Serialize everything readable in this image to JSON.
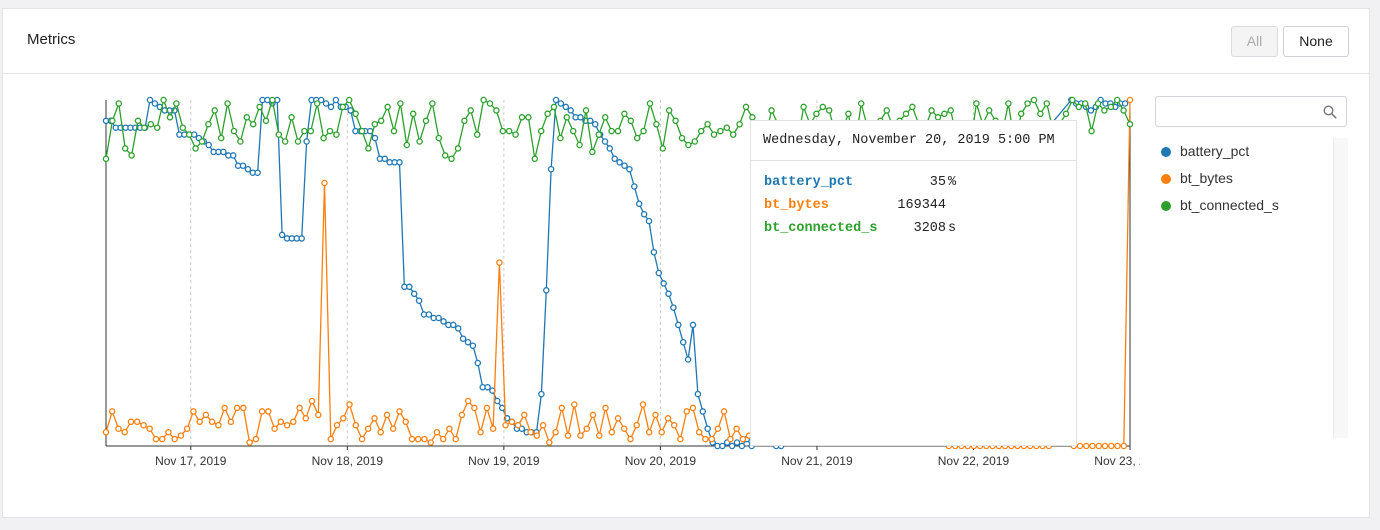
{
  "header": {
    "title": "Metrics",
    "all_label": "All",
    "none_label": "None"
  },
  "search": {
    "placeholder": "",
    "value": ""
  },
  "colors": {
    "battery_pct": "#1f77b4",
    "bt_bytes": "#ff7f0e",
    "bt_connected_s": "#2ca02c",
    "grid": "#cccccc",
    "axis": "#333333"
  },
  "legend": [
    {
      "label": "battery_pct",
      "color": "#1f77b4"
    },
    {
      "label": "bt_bytes",
      "color": "#ff7f0e"
    },
    {
      "label": "bt_connected_s",
      "color": "#2ca02c"
    }
  ],
  "tooltip": {
    "title": "Wednesday, November 20, 2019 5:00 PM",
    "rows": [
      {
        "name": "battery_pct",
        "value": "35",
        "unit": "%",
        "color": "#1f77b4"
      },
      {
        "name": "bt_bytes",
        "value": "169344",
        "unit": "",
        "color": "#ff7f0e"
      },
      {
        "name": "bt_connected_s",
        "value": "3208",
        "unit": "s",
        "color": "#2ca02c"
      }
    ]
  },
  "chart_data": {
    "type": "line",
    "x_tick_labels": [
      "Nov 17, 2019",
      "Nov 18, 2019",
      "Nov 19, 2019",
      "Nov 20, 2019",
      "Nov 21, 2019",
      "Nov 22, 2019",
      "Nov 23, 2019"
    ],
    "x_start": "2019-11-16 11:00",
    "x_end": "2019-11-23 00:00",
    "y_normalized": true,
    "ylim": [
      0,
      1
    ],
    "grid": "vertical dashed at each day",
    "series": [
      {
        "name": "battery_pct",
        "x": [
          "2019-11-16 11:00",
          "2019-11-16 11:45",
          "2019-11-16 12:30",
          "2019-11-16 13:15",
          "2019-11-16 14:00",
          "2019-11-16 14:45",
          "2019-11-16 15:30",
          "2019-11-16 16:15",
          "2019-11-16 17:00",
          "2019-11-16 17:45",
          "2019-11-16 18:30",
          "2019-11-16 19:15",
          "2019-11-16 20:00",
          "2019-11-16 20:45",
          "2019-11-16 21:30",
          "2019-11-16 22:15",
          "2019-11-16 23:00",
          "2019-11-16 23:45",
          "2019-11-17 00:30",
          "2019-11-17 01:15",
          "2019-11-17 02:00",
          "2019-11-17 02:45",
          "2019-11-17 03:30",
          "2019-11-17 04:15",
          "2019-11-17 05:00",
          "2019-11-17 05:45",
          "2019-11-17 06:30",
          "2019-11-17 07:15",
          "2019-11-17 08:00",
          "2019-11-17 08:45",
          "2019-11-17 09:30",
          "2019-11-17 10:15",
          "2019-11-17 11:00",
          "2019-11-17 11:45",
          "2019-11-17 12:30",
          "2019-11-17 13:15",
          "2019-11-17 14:00",
          "2019-11-17 14:45",
          "2019-11-17 15:30",
          "2019-11-17 16:15",
          "2019-11-17 17:00",
          "2019-11-17 17:45",
          "2019-11-17 18:30",
          "2019-11-17 19:15",
          "2019-11-17 20:00",
          "2019-11-17 20:45",
          "2019-11-17 21:30",
          "2019-11-17 22:15",
          "2019-11-17 23:00",
          "2019-11-17 23:45",
          "2019-11-18 00:30",
          "2019-11-18 01:15",
          "2019-11-18 02:00",
          "2019-11-18 02:45",
          "2019-11-18 03:30",
          "2019-11-18 04:15",
          "2019-11-18 05:00",
          "2019-11-18 05:45",
          "2019-11-18 06:30",
          "2019-11-18 07:15",
          "2019-11-18 08:00",
          "2019-11-18 08:45",
          "2019-11-18 09:30",
          "2019-11-18 10:15",
          "2019-11-18 11:00",
          "2019-11-18 11:45",
          "2019-11-18 12:30",
          "2019-11-18 13:15",
          "2019-11-18 14:00",
          "2019-11-18 14:45",
          "2019-11-18 15:30",
          "2019-11-18 16:15",
          "2019-11-18 17:00",
          "2019-11-18 17:45",
          "2019-11-18 18:30",
          "2019-11-18 19:15",
          "2019-11-18 20:00",
          "2019-11-18 20:45",
          "2019-11-18 21:30",
          "2019-11-18 22:15",
          "2019-11-18 23:00",
          "2019-11-18 23:45",
          "2019-11-19 00:30",
          "2019-11-19 01:15",
          "2019-11-19 02:00",
          "2019-11-19 02:45",
          "2019-11-19 03:30",
          "2019-11-19 04:15",
          "2019-11-19 05:00",
          "2019-11-19 05:45",
          "2019-11-19 06:30",
          "2019-11-19 07:15",
          "2019-11-19 08:00",
          "2019-11-19 08:45",
          "2019-11-19 09:30",
          "2019-11-19 10:15",
          "2019-11-19 11:00",
          "2019-11-19 11:45",
          "2019-11-19 12:30",
          "2019-11-19 13:15",
          "2019-11-19 14:00",
          "2019-11-19 14:45",
          "2019-11-19 15:30",
          "2019-11-19 16:15",
          "2019-11-19 17:00",
          "2019-11-19 17:45",
          "2019-11-19 18:30",
          "2019-11-19 19:15",
          "2019-11-19 20:00",
          "2019-11-19 20:45",
          "2019-11-19 21:30",
          "2019-11-19 22:15",
          "2019-11-19 23:00",
          "2019-11-19 23:45",
          "2019-11-20 00:30",
          "2019-11-20 01:15",
          "2019-11-20 02:00",
          "2019-11-20 02:45",
          "2019-11-20 03:30",
          "2019-11-20 04:15",
          "2019-11-20 05:00",
          "2019-11-20 05:45",
          "2019-11-20 06:30",
          "2019-11-20 07:15",
          "2019-11-20 08:00",
          "2019-11-20 08:45",
          "2019-11-20 09:30",
          "2019-11-20 10:15",
          "2019-11-20 11:00",
          "2019-11-20 11:45",
          "2019-11-20 12:30",
          "2019-11-20 13:15",
          "2019-11-20 14:00",
          "2019-11-20 14:45",
          "2019-11-20 15:30",
          "2019-11-20 16:15",
          "2019-11-20 17:00",
          "2019-11-20 17:45",
          "2019-11-20 18:30",
          "2019-11-22 15:00",
          "2019-11-22 15:45",
          "2019-11-22 16:30",
          "2019-11-22 17:15",
          "2019-11-22 18:00",
          "2019-11-22 18:45",
          "2019-11-22 19:30",
          "2019-11-22 20:15",
          "2019-11-22 21:00",
          "2019-11-22 21:45",
          "2019-11-22 22:30",
          "2019-11-22 23:15"
        ],
        "values": [
          0.94,
          0.94,
          0.92,
          0.92,
          0.92,
          0.92,
          0.92,
          0.92,
          0.92,
          1.0,
          0.99,
          0.98,
          0.97,
          0.97,
          0.97,
          0.9,
          0.9,
          0.9,
          0.9,
          0.89,
          0.88,
          0.87,
          0.85,
          0.85,
          0.85,
          0.84,
          0.84,
          0.81,
          0.81,
          0.8,
          0.79,
          0.79,
          1.0,
          1.0,
          0.99,
          1.0,
          0.61,
          0.6,
          0.6,
          0.6,
          0.6,
          0.88,
          1.0,
          1.0,
          1.0,
          0.99,
          0.98,
          1.0,
          0.98,
          0.98,
          0.97,
          0.91,
          0.91,
          0.91,
          0.91,
          0.89,
          0.83,
          0.83,
          0.82,
          0.82,
          0.82,
          0.46,
          0.46,
          0.44,
          0.42,
          0.38,
          0.38,
          0.37,
          0.37,
          0.36,
          0.35,
          0.35,
          0.34,
          0.31,
          0.3,
          0.29,
          0.24,
          0.17,
          0.17,
          0.16,
          0.13,
          0.11,
          0.08,
          0.07,
          0.05,
          0.05,
          0.04,
          0.04,
          0.04,
          0.15,
          0.45,
          0.8,
          1.0,
          0.99,
          0.98,
          0.97,
          0.95,
          0.95,
          0.94,
          0.94,
          0.93,
          0.9,
          0.88,
          0.86,
          0.83,
          0.82,
          0.81,
          0.8,
          0.75,
          0.7,
          0.67,
          0.65,
          0.56,
          0.5,
          0.47,
          0.44,
          0.4,
          0.35,
          0.3,
          0.25,
          0.35,
          0.15,
          0.1,
          0.05,
          0.01,
          0.0,
          0.0,
          0.01,
          0.0,
          0.01,
          0.0,
          0.02,
          0.0,
          0.01,
          0.35,
          0.1,
          0.04,
          0.0,
          0.0,
          1.0,
          0.99,
          0.99,
          0.98,
          0.97,
          0.98,
          1.0,
          0.99,
          0.99,
          0.98,
          0.99,
          0.99
        ]
      },
      {
        "name": "bt_bytes",
        "values": [
          0.04,
          0.1,
          0.05,
          0.04,
          0.07,
          0.07,
          0.06,
          0.05,
          0.02,
          0.02,
          0.04,
          0.02,
          0.03,
          0.05,
          0.1,
          0.07,
          0.09,
          0.07,
          0.06,
          0.11,
          0.07,
          0.11,
          0.11,
          0.01,
          0.02,
          0.1,
          0.1,
          0.05,
          0.07,
          0.06,
          0.07,
          0.11,
          0.08,
          0.13,
          0.09,
          0.76,
          0.02,
          0.06,
          0.08,
          0.12,
          0.06,
          0.02,
          0.05,
          0.08,
          0.04,
          0.09,
          0.05,
          0.1,
          0.07,
          0.02,
          0.02,
          0.02,
          0.01,
          0.04,
          0.02,
          0.05,
          0.02,
          0.09,
          0.13,
          0.11,
          0.04,
          0.11,
          0.05,
          0.53,
          0.06,
          0.07,
          0.06,
          0.09,
          0.04,
          0.03,
          0.06,
          0.01,
          0.04,
          0.11,
          0.03,
          0.12,
          0.03,
          0.05,
          0.09,
          0.03,
          0.11,
          0.04,
          0.08,
          0.05,
          0.02,
          0.06,
          0.12,
          0.04,
          0.09,
          0.04,
          0.08,
          0.06,
          0.02,
          0.1,
          0.11,
          0.04,
          0.02,
          0.02,
          0.05,
          0.1,
          0.02,
          0.05,
          0.02,
          0.03,
          0.06,
          0.06,
          0.04,
          0.03,
          0.07,
          0.1,
          0.11,
          0.08,
          0.06,
          0.04,
          0.05,
          0.03,
          0.06,
          0.1,
          0.06,
          0.03,
          0.11,
          0.04,
          0.05,
          0.09,
          0.02,
          0.1,
          0.03,
          0.05,
          0.01,
          0.12,
          0.05,
          0.79,
          0.12,
          0.04,
          0.02,
          0.0,
          0.0,
          0.0,
          0.0,
          0.0,
          0.0,
          0.0,
          0.0,
          0.0,
          0.0,
          0.0,
          0.0,
          0.0,
          0.0,
          0.0,
          0.0,
          0.0,
          0.01,
          0.01,
          0.02,
          0.0,
          0.0,
          0.0,
          0.0,
          0.0,
          0.0,
          0.0,
          0.0,
          0.0,
          1.0
        ]
      },
      {
        "name": "bt_connected_s",
        "values": [
          0.83,
          0.94,
          0.99,
          0.86,
          0.84,
          0.94,
          0.92,
          0.93,
          0.92,
          1.0,
          0.95,
          0.99,
          0.92,
          0.9,
          0.86,
          0.88,
          0.93,
          0.97,
          0.89,
          0.99,
          0.91,
          0.88,
          0.95,
          0.93,
          0.98,
          0.94,
          1.0,
          0.9,
          0.88,
          0.95,
          0.88,
          0.91,
          0.91,
          0.99,
          0.89,
          0.91,
          0.9,
          0.98,
          1.0,
          0.96,
          0.91,
          0.86,
          0.93,
          0.94,
          0.98,
          0.91,
          0.99,
          0.87,
          0.96,
          0.88,
          0.94,
          0.99,
          0.89,
          0.84,
          0.83,
          0.86,
          0.94,
          0.97,
          0.9,
          1.0,
          0.99,
          0.97,
          0.91,
          0.91,
          0.9,
          0.95,
          0.95,
          0.83,
          0.91,
          0.96,
          0.98,
          0.89,
          0.95,
          0.91,
          0.87,
          0.97,
          0.85,
          0.9,
          0.95,
          0.91,
          0.91,
          0.96,
          0.94,
          0.89,
          0.91,
          0.99,
          0.93,
          0.86,
          0.97,
          0.94,
          0.89,
          0.87,
          0.88,
          0.91,
          0.93,
          0.9,
          0.91,
          0.92,
          0.9,
          0.93,
          0.98,
          0.95,
          0.92,
          0.89,
          0.97,
          0.93,
          0.9,
          0.85,
          0.87,
          0.98,
          0.93,
          0.96,
          0.98,
          0.97,
          0.9,
          0.91,
          0.96,
          0.86,
          0.99,
          0.92,
          0.86,
          0.94,
          0.97,
          0.92,
          0.94,
          0.96,
          0.98,
          0.93,
          0.92,
          0.97,
          0.95,
          0.96,
          0.97,
          0.88,
          0.91,
          0.86,
          0.99,
          0.93,
          0.97,
          0.94,
          0.9,
          0.99,
          0.87,
          0.96,
          0.99,
          1.0,
          0.96,
          0.99,
          0.91,
          0.93,
          0.96,
          1.0,
          0.98,
          0.99,
          0.91,
          0.99,
          0.97,
          0.98,
          1.0,
          0.97,
          0.93
        ]
      }
    ]
  }
}
